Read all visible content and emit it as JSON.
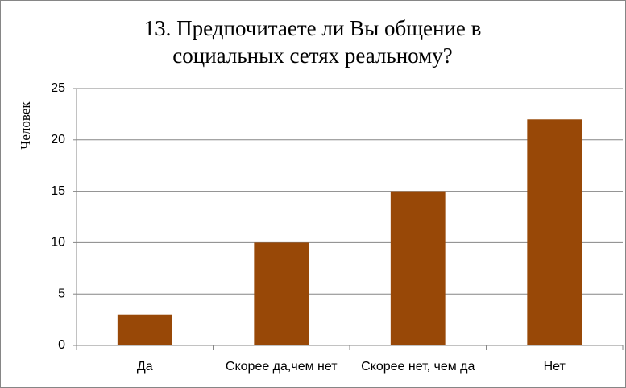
{
  "chart_data": {
    "type": "bar",
    "title": "13. Предпочитаете ли Вы общение в социальных сетях реальному?",
    "y_label": "Человек",
    "categories": [
      "Да",
      "Скорее да,чем нет",
      "Скорее нет, чем да",
      "Нет"
    ],
    "values": [
      3,
      10,
      15,
      22
    ],
    "color": "#984807",
    "ylim": [
      0,
      25
    ],
    "yticks": [
      0,
      5,
      10,
      15,
      20,
      25
    ],
    "grid": true
  }
}
